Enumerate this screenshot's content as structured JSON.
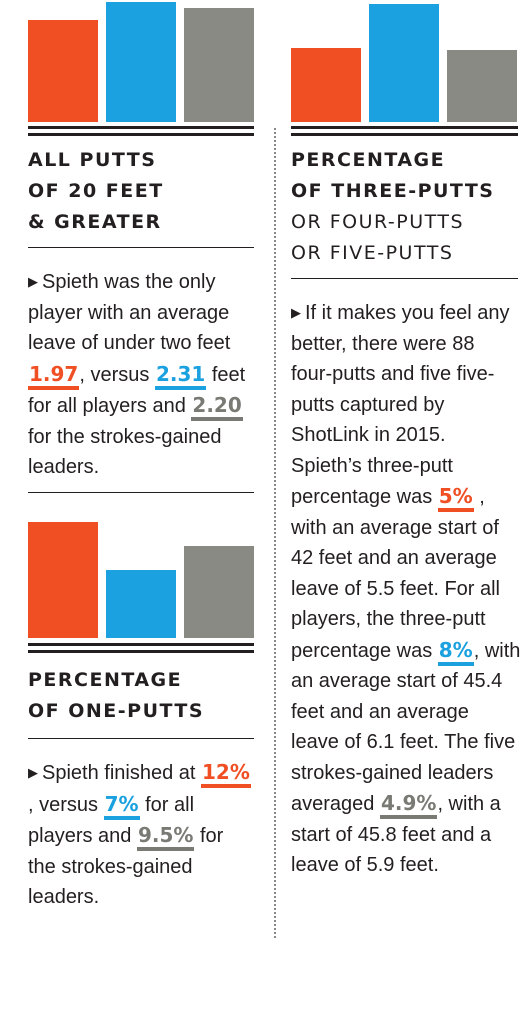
{
  "colors": {
    "spieth": "#f04e23",
    "all_players": "#1ba1df",
    "sg_leaders": "#8a8a85",
    "ink": "#231f20"
  },
  "chart_data": [
    {
      "type": "bar",
      "id": "chart-20ft",
      "title": "ALL PUTTS OF 20 FEET & GREATER",
      "categories": [
        "Spieth",
        "All players",
        "Strokes-gained leaders"
      ],
      "values": [
        1.97,
        2.31,
        2.2
      ],
      "ylim": [
        0,
        2.5
      ]
    },
    {
      "type": "bar",
      "id": "chart-three-putts",
      "title": "PERCENTAGE OF THREE-PUTTS",
      "subtitle": [
        "OR FOUR-PUTTS",
        "OR FIVE-PUTTS"
      ],
      "categories": [
        "Spieth",
        "All players",
        "Strokes-gained leaders"
      ],
      "values": [
        5,
        8,
        4.9
      ],
      "ylim": [
        0,
        9
      ]
    },
    {
      "type": "bar",
      "id": "chart-one-putts",
      "title": "PERCENTAGE OF ONE-PUTTS",
      "categories": [
        "Spieth",
        "All players",
        "Strokes-gained leaders"
      ],
      "values": [
        12,
        7,
        9.5
      ],
      "ylim": [
        0,
        13
      ]
    }
  ],
  "panel1": {
    "heading": [
      "ALL PUTTS",
      "OF 20 FEET",
      "& GREATER"
    ],
    "text": {
      "a": "Spieth was the only player with an average leave of under two feet ",
      "v1": "1.97",
      "b": ", versus ",
      "v2": "2.31",
      "c": " feet for all players and ",
      "v3": "2.20",
      "d": " for the strokes-gained leaders."
    }
  },
  "panel2": {
    "heading": [
      "PERCENTAGE",
      "OF THREE-PUTTS"
    ],
    "subheading": [
      "OR FOUR-PUTTS",
      "OR FIVE-PUTTS"
    ],
    "text": {
      "a": "If it makes you feel any better, there were 88 four-putts and five five-putts captured by ShotLink in 2015. Spieth’s three-putt percentage was ",
      "v1": "5%",
      "b": " , with an average start of 42 feet and an average leave of 5.5 feet. For all players, the three-putt percentage was ",
      "v2": "8%",
      "c": ", with an average start of 45.4 feet and an average leave of 6.1 feet. The five strokes-gained leaders averaged ",
      "v3": "4.9%",
      "d": ", with a start of 45.8 feet and a leave of 5.9 feet."
    }
  },
  "panel3": {
    "heading": [
      "PERCENTAGE",
      "OF ONE-PUTTS"
    ],
    "text": {
      "a": "Spieth finished at ",
      "v1": "12%",
      "b": " , versus ",
      "v2": "7%",
      "c": " for all players and ",
      "v3": "9.5%",
      "d": " for the strokes-gained leaders."
    }
  }
}
